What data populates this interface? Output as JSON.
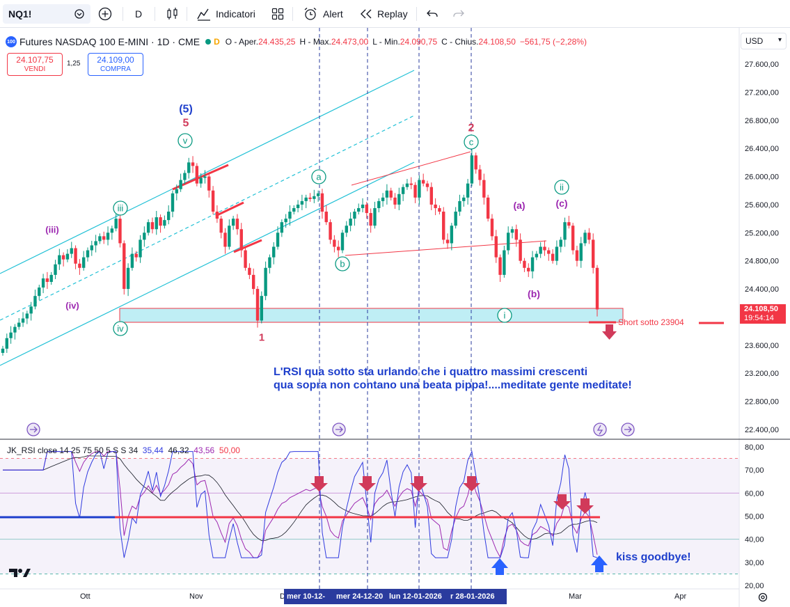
{
  "toolbar": {
    "symbol": "NQ1!",
    "interval": "D",
    "indicators_label": "Indicatori",
    "alert_label": "Alert",
    "replay_label": "Replay"
  },
  "legend": {
    "title": "Futures NASDAQ 100 E-MINI · 1D · CME",
    "logo": "100",
    "session_mark": "D",
    "open": "O - Aper.",
    "open_val": "24.435,25",
    "high": "H - Max.",
    "high_val": "24.473,00",
    "low": "L - Min.",
    "low_val": "24.090,75",
    "close": "C - Chius.",
    "close_val": "24.108,50",
    "change": "−561,75 (−2,28%)"
  },
  "trade": {
    "sell_price": "24.107,75",
    "sell_label": "VENDI",
    "spread": "1,25",
    "buy_price": "24.109,00",
    "buy_label": "COMPRA"
  },
  "currency": "USD",
  "price_tag": {
    "price": "24.108,50",
    "countdown": "19:54:14"
  },
  "annotations": {
    "comment_line1": "L'RSI qua sotto sta urlando che i quattro massimi crescenti",
    "comment_line2": "qua sopra non contano una beata pippa!....meditate gente meditate!",
    "kiss": "kiss goodbye!",
    "short": "Short sotto 23904",
    "wave_labels": [
      "(5)",
      "5",
      "v",
      "(iii)",
      "iii",
      "(iv)",
      "iv",
      "1",
      "a",
      "b",
      "2",
      "c",
      "(a)",
      "(c)",
      "ii",
      "(b)",
      "i"
    ]
  },
  "rsi": {
    "title": "JK_RSI close 14 25 75 50 5 S S 34",
    "v1": "35,44",
    "v2": "46,32",
    "v3": "43,56",
    "v4": "50,00"
  },
  "x_axis": {
    "labels": [
      "Ott",
      "Nov",
      "D",
      "Mar",
      "Apr"
    ],
    "highlighted": [
      "mer 10-12-",
      "mer 24-12-20",
      "lun 12-01-2026",
      "r 28-01-2026"
    ]
  },
  "colors": {
    "bull": "#089981",
    "bear": "#f23645",
    "channel": "#22c1d6",
    "annotation": "#1e3fcc",
    "rsi_line": "#2f3adf",
    "rsi_signal": "#9c27b0",
    "wave_primary": "#1e3fcc",
    "wave_green": "#089981",
    "wave_purple": "#9c27b0"
  },
  "chart_data": [
    {
      "type": "candlestick",
      "title": "Futures NASDAQ 100 E-MINI · 1D · CME",
      "y_ticks": [
        27600,
        27200,
        26800,
        26400,
        26000,
        25600,
        25200,
        24800,
        24400,
        24000,
        23600,
        23200,
        22800,
        22400
      ],
      "y_tick_labels": [
        "27.600,00",
        "27.200,00",
        "26.800,00",
        "26.400,00",
        "26.000,00",
        "25.600,00",
        "25.200,00",
        "24.800,00",
        "24.400,00",
        "",
        "23.600,00",
        "23.200,00",
        "22.800,00",
        "22.400,00"
      ],
      "ylim": [
        22300,
        27900
      ],
      "last_close": 24108.5,
      "support_zone": [
        23904,
        24100
      ],
      "short_level": 23904,
      "closes": [
        23550,
        23700,
        23780,
        23860,
        23920,
        23980,
        24050,
        24150,
        24300,
        24420,
        24550,
        24500,
        24600,
        24750,
        24880,
        24820,
        24900,
        24980,
        24760,
        24700,
        24850,
        24950,
        25020,
        25080,
        25150,
        25100,
        25200,
        25260,
        25400,
        25050,
        24400,
        24700,
        24900,
        24850,
        25100,
        25200,
        25350,
        25250,
        25420,
        25300,
        25380,
        25500,
        25760,
        25820,
        25950,
        26050,
        26200,
        26150,
        25900,
        25980,
        26000,
        25800,
        25500,
        25400,
        25200,
        25000,
        25300,
        25400,
        25250,
        24950,
        24700,
        24600,
        24400,
        23950,
        24300,
        24700,
        24850,
        25000,
        25200,
        25350,
        25400,
        25500,
        25550,
        25600,
        25650,
        25700,
        25680,
        25720,
        25760,
        25500,
        25350,
        25100,
        25000,
        24950,
        25200,
        25300,
        25400,
        25500,
        25550,
        25600,
        25480,
        25300,
        25550,
        25650,
        25700,
        25800,
        25700,
        25600,
        25750,
        25850,
        25900,
        25880,
        25700,
        25950,
        25900,
        25850,
        25600,
        25550,
        25500,
        25100,
        25050,
        25300,
        25500,
        25650,
        25700,
        25900,
        26300,
        26100,
        25950,
        25700,
        25400,
        25150,
        24850,
        24600,
        24950,
        25200,
        25250,
        25100,
        24800,
        24700,
        24650,
        24850,
        24900,
        25000,
        24950,
        24900,
        24800,
        25000,
        25100,
        25350,
        25300,
        24950,
        24800,
        25050,
        25200,
        25100,
        24700,
        24108.5
      ]
    },
    {
      "type": "line",
      "title": "JK_RSI close 14 25 75 50 5 S S 34",
      "y_ticks": [
        80,
        70,
        60,
        50,
        40,
        30,
        20
      ],
      "y_tick_labels": [
        "80,00",
        "70,00",
        "60,00",
        "50,00",
        "40,00",
        "30,00",
        "20,00"
      ],
      "levels": [
        75,
        60,
        50,
        40,
        25
      ],
      "ylim": [
        20,
        82
      ],
      "last_values": [
        35.44,
        46.32,
        43.56,
        50.0
      ]
    }
  ]
}
